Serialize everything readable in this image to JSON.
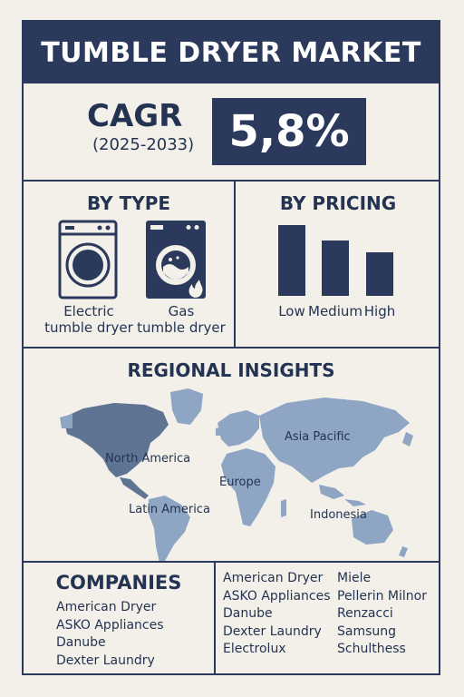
{
  "header": {
    "title": "TUMBLE DRYER MARKET"
  },
  "cagr": {
    "label": "CAGR",
    "years": "(2025-2033)",
    "value": "5,8%"
  },
  "by_type": {
    "title": "BY TYPE",
    "items": [
      {
        "label_line1": "Electric",
        "label_line2": "tumble dryer",
        "icon": "electric-dryer-icon"
      },
      {
        "label_line1": "Gas",
        "label_line2": "tumble dryer",
        "icon": "gas-dryer-icon"
      }
    ]
  },
  "by_pricing": {
    "title": "BY PRICING",
    "bars": [
      {
        "label": "Low",
        "level": 1.0
      },
      {
        "label": "Medium",
        "level": 0.78
      },
      {
        "label": "High",
        "level": 0.62
      }
    ]
  },
  "regional": {
    "title": "REGIONAL INSIGHTS",
    "regions": [
      "North America",
      "Latin America",
      "Europe",
      "Asia Pacific",
      "Indonesia"
    ],
    "colors": {
      "land": "#8ea6c3",
      "highlight": "#5f7493"
    }
  },
  "companies": {
    "title": "COMPANIES",
    "list_a": [
      "American Dryer",
      "ASKO Appliances",
      "Danube",
      "Dexter Laundry"
    ],
    "list_b": [
      "American Dryer",
      "ASKO Appliances",
      "Danube",
      "Dexter Laundry",
      "Electrolux"
    ],
    "list_c": [
      "Miele",
      "Pellerin Milnor",
      "Renzacci",
      "Samsung",
      "Schulthess"
    ]
  },
  "colors": {
    "navy": "#2b3a5c",
    "background": "#f3f0ea"
  }
}
